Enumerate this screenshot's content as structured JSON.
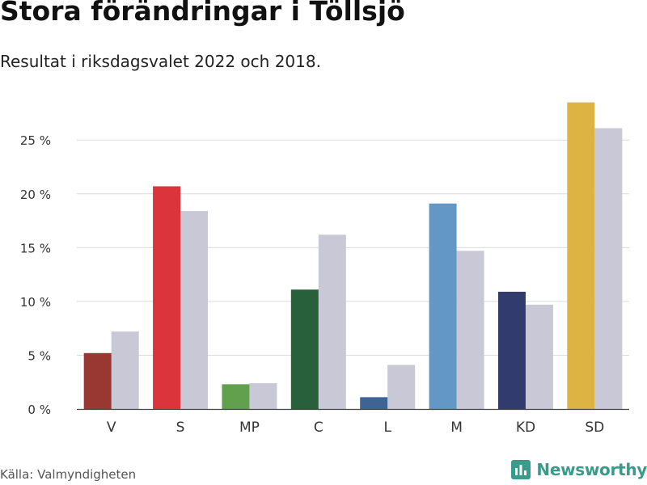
{
  "header": {
    "title": "Stora förändringar i Töllsjö",
    "subtitle": "Resultat i riksdagsvalet 2022 och 2018."
  },
  "footer": {
    "source": "Källa: Valmyndigheten",
    "brand": "Newsworthy",
    "brand_icon": "newsworthy-logo-icon",
    "brand_color": "#3a9a8c"
  },
  "chart_data": {
    "type": "bar",
    "title": "Stora förändringar i Töllsjö",
    "subtitle": "Resultat i riksdagsvalet 2022 och 2018.",
    "xlabel": "",
    "ylabel": "",
    "ylim": [
      0,
      29
    ],
    "yticks": [
      0,
      5,
      10,
      15,
      20,
      25
    ],
    "tick_labels": [
      "0 %",
      "5 %",
      "10 %",
      "15 %",
      "20 %",
      "25 %"
    ],
    "grid": true,
    "categories": [
      "V",
      "S",
      "MP",
      "C",
      "L",
      "M",
      "KD",
      "SD"
    ],
    "series": [
      {
        "name": "2022",
        "values": [
          5.2,
          20.7,
          2.3,
          11.1,
          1.1,
          19.1,
          10.9,
          28.5
        ],
        "colors": [
          "#993833",
          "#dc343b",
          "#62a04e",
          "#27603b",
          "#3e6496",
          "#6397c6",
          "#313b6e",
          "#ddb444"
        ]
      },
      {
        "name": "2018",
        "values": [
          7.2,
          18.4,
          2.4,
          16.2,
          4.1,
          14.7,
          9.7,
          26.1
        ],
        "color": "#c8c8d6"
      }
    ]
  }
}
